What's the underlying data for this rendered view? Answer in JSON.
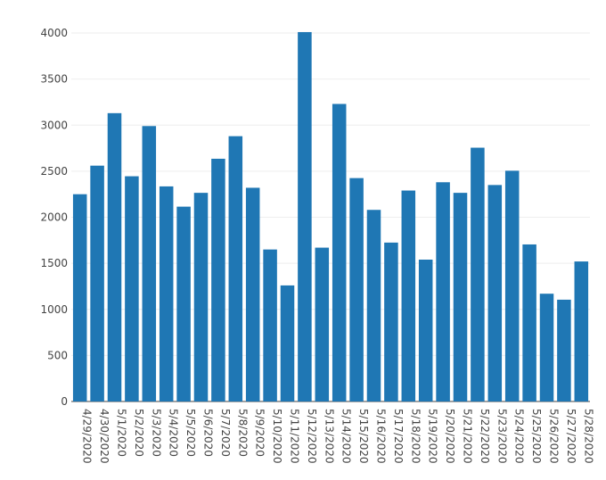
{
  "chart_data": {
    "type": "bar",
    "categories": [
      "4/29/2020",
      "4/30/2020",
      "5/1/2020",
      "5/2/2020",
      "5/3/2020",
      "5/4/2020",
      "5/5/2020",
      "5/6/2020",
      "5/7/2020",
      "5/8/2020",
      "5/9/2020",
      "5/10/2020",
      "5/11/2020",
      "5/12/2020",
      "5/13/2020",
      "5/14/2020",
      "5/15/2020",
      "5/16/2020",
      "5/17/2020",
      "5/18/2020",
      "5/19/2020",
      "5/20/2020",
      "5/21/2020",
      "5/22/2020",
      "5/23/2020",
      "5/24/2020",
      "5/25/2020",
      "5/26/2020",
      "5/27/2020",
      "5/28/2020"
    ],
    "values": [
      2250,
      2560,
      3130,
      2445,
      2990,
      2335,
      2115,
      2265,
      2635,
      2880,
      2320,
      1650,
      1260,
      4010,
      1670,
      3230,
      2425,
      2080,
      1725,
      2290,
      1540,
      2380,
      2265,
      2755,
      2350,
      2505,
      1705,
      1170,
      1105,
      1520
    ],
    "title": "",
    "xlabel": "",
    "ylabel": "",
    "ylim": [
      0,
      4000
    ],
    "yticks": [
      0,
      500,
      1000,
      1500,
      2000,
      2500,
      3000,
      3500,
      4000
    ],
    "bar_color": "#1f77b4",
    "grid": true,
    "legend": "none"
  }
}
